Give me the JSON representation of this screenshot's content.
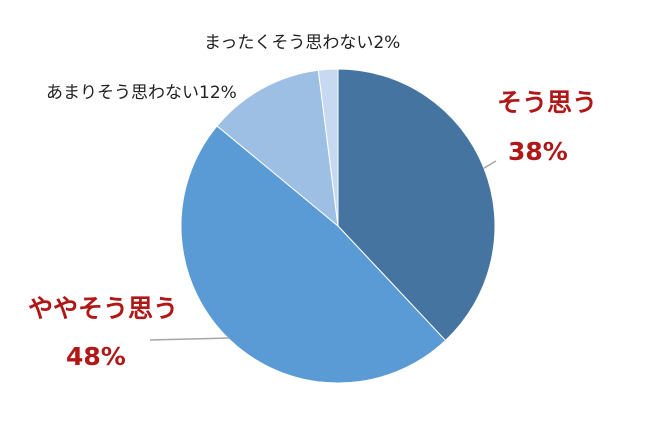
{
  "chart_data": {
    "type": "pie",
    "start_angle_deg": 0,
    "direction": "clockwise",
    "slices": [
      {
        "label": "そう思う",
        "value": 38,
        "value_text": "38%",
        "color": "#44749f",
        "emphasis": true
      },
      {
        "label": "ややそう思う",
        "value": 48,
        "value_text": "48%",
        "color": "#5b9bd5",
        "emphasis": true
      },
      {
        "label": "あまりそう思わない",
        "value": 12,
        "value_text": "12%",
        "color": "#9dbfe3",
        "emphasis": false
      },
      {
        "label": "まったくそう思わない",
        "value": 2,
        "value_text": "2%",
        "color": "#c6d9f0",
        "emphasis": false
      }
    ],
    "colors": {
      "emphasis_text": "#b01818",
      "normal_text": "#222222",
      "leader_line": "#a6a6a6",
      "slice_border": "#ffffff"
    }
  }
}
